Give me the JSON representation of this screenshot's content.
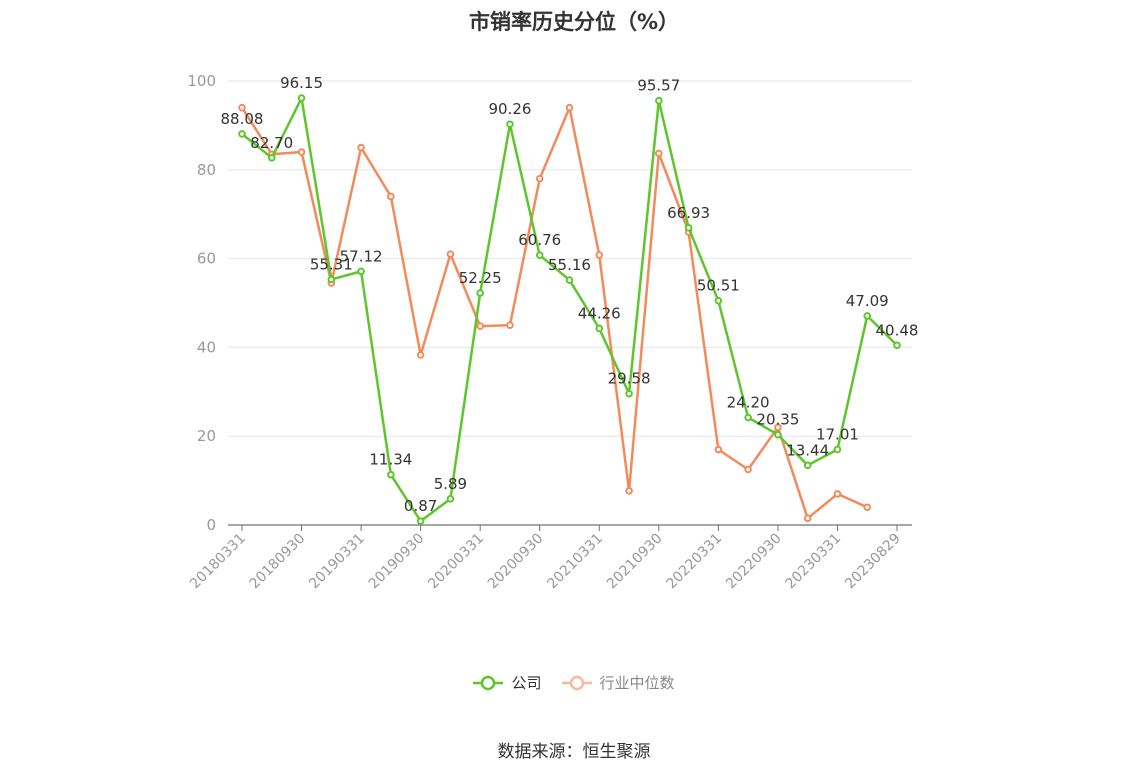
{
  "title": "市销率历史分位（%）",
  "source": "数据来源：恒生聚源",
  "colors": {
    "company": "#5ec62c",
    "industry": "#f28b5c",
    "industry_legend": "#f7b9a2",
    "grid": "#e6e6e6",
    "axis": "#6e7079"
  },
  "chart_data": {
    "type": "line",
    "title": "市销率历史分位（%）",
    "ylim": [
      0,
      100
    ],
    "yticks": [
      0,
      20,
      40,
      60,
      80,
      100
    ],
    "grid": true,
    "legend_position": "bottom",
    "x_labels_shown": [
      "20180331",
      "20180930",
      "20190331",
      "20190930",
      "20200331",
      "20200930",
      "20210331",
      "20210930",
      "20220331",
      "20220930",
      "20230331",
      "20230829"
    ],
    "x": [
      "20180331",
      "20180630",
      "20180930",
      "20181231",
      "20190331",
      "20190630",
      "20190930",
      "20191231",
      "20200331",
      "20200630",
      "20200930",
      "20201231",
      "20210331",
      "20210630",
      "20210930",
      "20211231",
      "20220331",
      "20220630",
      "20220930",
      "20221231",
      "20230331",
      "20230630",
      "20230829"
    ],
    "series": [
      {
        "name": "公司",
        "color": "#5ec62c",
        "values": [
          88.08,
          82.7,
          96.15,
          55.31,
          57.12,
          11.34,
          0.87,
          5.89,
          52.25,
          90.26,
          60.76,
          55.16,
          44.26,
          29.58,
          95.57,
          66.93,
          50.51,
          24.2,
          20.35,
          13.44,
          17.01,
          47.09,
          40.48
        ]
      },
      {
        "name": "行业中位数",
        "color": "#f28b5c",
        "values": [
          94,
          83.5,
          84,
          54.5,
          85,
          74,
          38.3,
          61,
          44.8,
          45,
          78,
          94,
          60.8,
          7.7,
          83.7,
          66,
          17,
          12.5,
          22,
          1.5,
          7,
          4,
          null
        ]
      }
    ]
  }
}
